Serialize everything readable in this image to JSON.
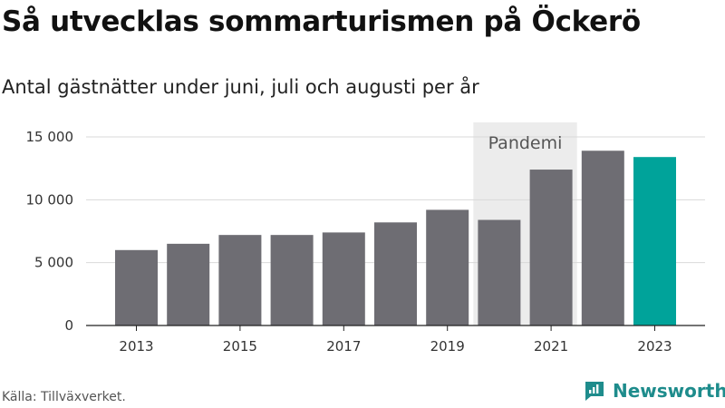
{
  "header": {
    "title": "Så utvecklas sommarturismen på Öckerö",
    "subtitle": "Antal gästnätter under juni, juli och augusti per år"
  },
  "footer": {
    "source": "Källa: Tillväxverket.",
    "brand": "Newsworthy"
  },
  "colors": {
    "bar": "#6e6d73",
    "highlight": "#00a39a",
    "band": "#ececec",
    "grid": "#d9d9d9",
    "brand": "#1e8c8c"
  },
  "chart_data": {
    "type": "bar",
    "title": "Så utvecklas sommarturismen på Öckerö",
    "subtitle": "Antal gästnätter under juni, juli och augusti per år",
    "categories": [
      "2013",
      "2014",
      "2015",
      "2016",
      "2017",
      "2018",
      "2019",
      "2020",
      "2021",
      "2022",
      "2023"
    ],
    "values": [
      6000,
      6500,
      7200,
      7200,
      7400,
      8200,
      9200,
      8400,
      12400,
      13900,
      13400
    ],
    "highlight_category": "2023",
    "ylim": [
      0,
      15000
    ],
    "yticks": [
      0,
      5000,
      10000,
      15000
    ],
    "ytick_labels": [
      "0",
      "5 000",
      "10 000",
      "15 000"
    ],
    "xtick_labels": [
      "2013",
      "2015",
      "2017",
      "2019",
      "2021",
      "2023"
    ],
    "grid": "horizontal",
    "annotation": {
      "label": "Pandemi",
      "from": "2020",
      "to": "2021"
    }
  }
}
